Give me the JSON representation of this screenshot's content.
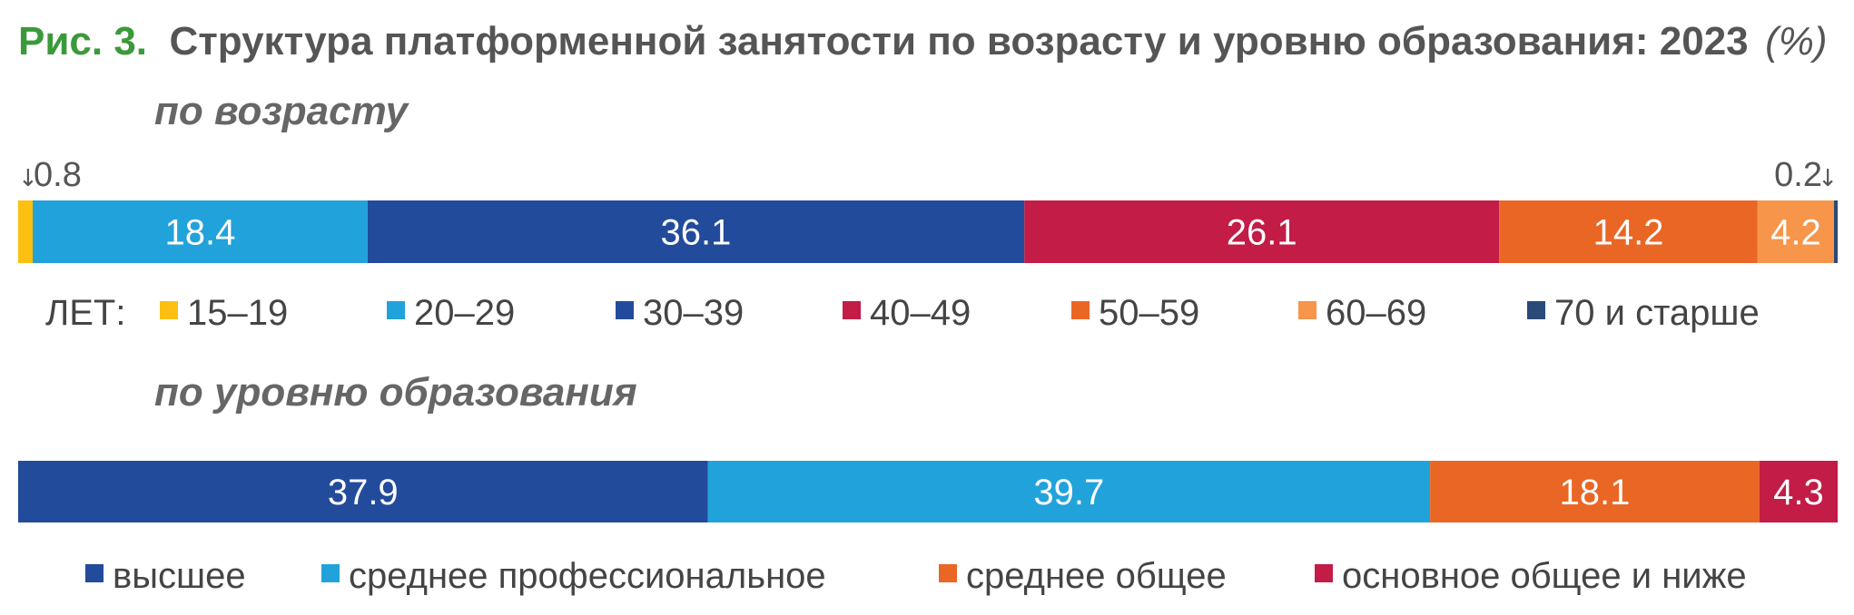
{
  "figure": {
    "number": "Рис. 3.",
    "title": "Структура платформенной занятости по возрасту и уровню образования: 2023",
    "unit": "(%)"
  },
  "chart_data": [
    {
      "type": "bar",
      "orientation": "horizontal",
      "stacked": true,
      "normalized": true,
      "title": "по возрасту",
      "xlim": [
        0,
        100
      ],
      "legend_prefix": "ЛЕТ:",
      "legend_placement": "bottom",
      "grid": false,
      "segments": [
        {
          "name": "15–19",
          "value": 0.8,
          "color": "#fdc010",
          "label": "0.8"
        },
        {
          "name": "20–29",
          "value": 18.4,
          "color": "#22a2da",
          "label": "18.4"
        },
        {
          "name": "30–39",
          "value": 36.1,
          "color": "#234b9b",
          "label": "36.1"
        },
        {
          "name": "40–49",
          "value": 26.1,
          "color": "#c21c47",
          "label": "26.1"
        },
        {
          "name": "50–59",
          "value": 14.2,
          "color": "#ea6625",
          "label": "14.2"
        },
        {
          "name": "60–69",
          "value": 4.2,
          "color": "#f7954a",
          "label": "4.2"
        },
        {
          "name": "70  и старше",
          "value": 0.2,
          "color": "#2a4a78",
          "label": "0.2"
        }
      ],
      "callouts": [
        {
          "segment": 0,
          "text": "0.8",
          "arrow": "↓",
          "arrow_side": "left"
        },
        {
          "segment": 6,
          "text": "0.2",
          "arrow": "↓",
          "arrow_side": "right"
        }
      ],
      "inline_labels": [
        1,
        2,
        3,
        4,
        5
      ]
    },
    {
      "type": "bar",
      "orientation": "horizontal",
      "stacked": true,
      "normalized": true,
      "title": "по уровню образования",
      "xlim": [
        0,
        100
      ],
      "legend_prefix": "",
      "legend_placement": "bottom",
      "grid": false,
      "segments": [
        {
          "name": "высшее",
          "value": 37.9,
          "color": "#234b9b",
          "label": "37.9"
        },
        {
          "name": "среднее профессиональное",
          "value": 39.7,
          "color": "#22a2da",
          "label": "39.7"
        },
        {
          "name": "среднее общее",
          "value": 18.1,
          "color": "#ea6625",
          "label": "18.1"
        },
        {
          "name": "основное общее и ниже",
          "value": 4.3,
          "color": "#c21c47",
          "label": "4.3"
        }
      ],
      "callouts": [],
      "inline_labels": [
        0,
        1,
        2,
        3
      ]
    }
  ]
}
